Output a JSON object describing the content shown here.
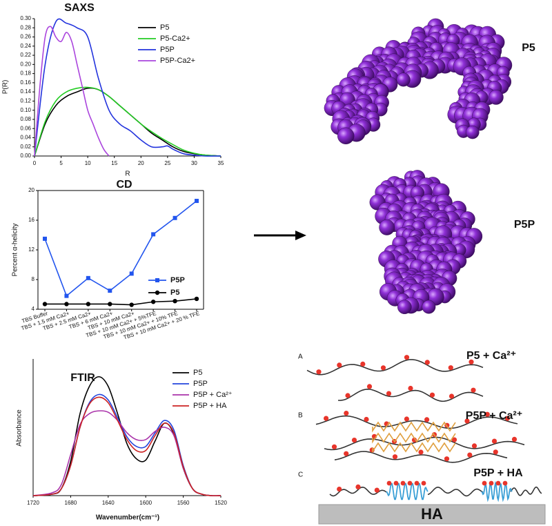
{
  "chart_data": [
    {
      "type": "line",
      "title": "SAXS",
      "x_label": "R",
      "y_label": "P(R)",
      "xlim": [
        0,
        35
      ],
      "xticks": [
        0,
        5,
        10,
        15,
        20,
        25,
        30,
        35
      ],
      "ylim": [
        0,
        0.3
      ],
      "yticks": [
        {
          "value": 0,
          "label": "0.00"
        },
        {
          "value": 0.02,
          "label": "0.02"
        },
        {
          "value": 0.04,
          "label": "0.04"
        },
        {
          "value": 0.06,
          "label": "0.06"
        },
        {
          "value": 0.08,
          "label": "0.08"
        },
        {
          "value": 0.1,
          "label": "0.10"
        },
        {
          "value": 0.12,
          "label": "0.12"
        },
        {
          "value": 0.14,
          "label": "0.14"
        },
        {
          "value": 0.16,
          "label": "0.16"
        },
        {
          "value": 0.18,
          "label": "0.18"
        },
        {
          "value": 0.2,
          "label": "0.20"
        },
        {
          "value": 0.22,
          "label": "0.22"
        },
        {
          "value": 0.24,
          "label": "0.24"
        },
        {
          "value": 0.26,
          "label": "0.26"
        },
        {
          "value": 0.28,
          "label": "0.28"
        },
        {
          "value": 0.3,
          "label": "0.30"
        }
      ],
      "legend": "upper right",
      "series": [
        {
          "name": "P5",
          "color": "#000000",
          "x": [
            0,
            2,
            4,
            6,
            8,
            10,
            12,
            14,
            16,
            18,
            20,
            22,
            24,
            26,
            28,
            30,
            32,
            35
          ],
          "values": [
            0,
            0.07,
            0.11,
            0.13,
            0.14,
            0.148,
            0.145,
            0.13,
            0.11,
            0.09,
            0.07,
            0.05,
            0.035,
            0.02,
            0.01,
            0.005,
            0.002,
            0
          ]
        },
        {
          "name": "P5-Ca2+",
          "color": "#22cc22",
          "x": [
            0,
            2,
            4,
            6,
            8,
            10,
            12,
            14,
            16,
            18,
            20,
            22,
            24,
            26,
            28,
            30,
            32,
            35
          ],
          "values": [
            0,
            0.075,
            0.12,
            0.14,
            0.148,
            0.15,
            0.145,
            0.13,
            0.11,
            0.09,
            0.07,
            0.053,
            0.038,
            0.025,
            0.013,
            0.006,
            0.002,
            0
          ]
        },
        {
          "name": "P5P",
          "color": "#2233dd",
          "x": [
            0,
            2,
            4,
            6,
            8,
            10,
            12,
            14,
            16,
            18,
            20,
            22,
            24,
            25,
            26,
            28,
            30,
            32,
            35
          ],
          "values": [
            0,
            0.2,
            0.293,
            0.29,
            0.28,
            0.26,
            0.17,
            0.1,
            0.07,
            0.055,
            0.035,
            0.02,
            0.02,
            0.022,
            0.015,
            0.005,
            0.002,
            0,
            0
          ]
        },
        {
          "name": "P5P-Ca2+",
          "color": "#aa44dd",
          "x": [
            0,
            1,
            2,
            3,
            4,
            5,
            6,
            7,
            8,
            9,
            10,
            11,
            12,
            13,
            14
          ],
          "values": [
            0,
            0.15,
            0.26,
            0.283,
            0.26,
            0.25,
            0.27,
            0.25,
            0.2,
            0.15,
            0.1,
            0.07,
            0.04,
            0.015,
            0
          ]
        }
      ]
    },
    {
      "type": "line",
      "title": "CD",
      "y_label": "Percent α-helicity",
      "categories": [
        "TBS Buffer",
        "TBS + 1.5 mM Ca2+",
        "TBS + 2.5 mM Ca2+",
        "TBS + 6 mM Ca2+",
        "TBS + 10 mM Ca2+",
        "TBS + 10 mM Ca2+ + 5%TFE",
        "TBS + 10 mM Ca2+ + 10% TFE",
        "TBS + 10 mM Ca2+ + 20 % TFE"
      ],
      "ylim": [
        4,
        20
      ],
      "yticks": [
        4,
        8,
        12,
        16,
        20
      ],
      "legend": "lower right",
      "series": [
        {
          "name": "P5P",
          "color": "#2255ee",
          "marker": "square",
          "values": [
            13.5,
            5.8,
            8.2,
            6.5,
            8.8,
            14.1,
            16.3,
            18.6
          ]
        },
        {
          "name": "P5",
          "color": "#000000",
          "marker": "circle",
          "values": [
            4.7,
            4.7,
            4.7,
            4.7,
            4.6,
            5.0,
            5.1,
            5.4
          ]
        }
      ]
    },
    {
      "type": "line",
      "title": "FTIR",
      "x_label": "Wavenumber(cm⁻¹)",
      "y_label": "Absorbance",
      "xlim": [
        1720,
        1520
      ],
      "xticks": [
        1720,
        1680,
        1640,
        1600,
        1560,
        1520
      ],
      "ylim": [
        0,
        1
      ],
      "legend": "upper right",
      "series": [
        {
          "name": "P5",
          "color": "#000000",
          "x": [
            1720,
            1700,
            1690,
            1680,
            1670,
            1660,
            1650,
            1640,
            1630,
            1620,
            1610,
            1600,
            1590,
            1580,
            1570,
            1560,
            1550,
            1540,
            1530,
            1520
          ],
          "values": [
            0,
            0.01,
            0.05,
            0.25,
            0.6,
            0.8,
            0.87,
            0.8,
            0.6,
            0.38,
            0.27,
            0.26,
            0.4,
            0.53,
            0.45,
            0.2,
            0.05,
            0.01,
            0,
            0
          ]
        },
        {
          "name": "P5P",
          "color": "#2244dd",
          "x": [
            1720,
            1700,
            1690,
            1680,
            1670,
            1660,
            1650,
            1640,
            1630,
            1620,
            1610,
            1600,
            1590,
            1580,
            1570,
            1560,
            1550,
            1540,
            1530,
            1520
          ],
          "values": [
            0,
            0.01,
            0.05,
            0.22,
            0.5,
            0.68,
            0.74,
            0.7,
            0.57,
            0.43,
            0.36,
            0.36,
            0.46,
            0.55,
            0.48,
            0.22,
            0.05,
            0.01,
            0,
            0
          ]
        },
        {
          "name": "P5P + Ca²⁺",
          "color": "#aa33aa",
          "x": [
            1720,
            1700,
            1690,
            1680,
            1670,
            1660,
            1650,
            1640,
            1630,
            1620,
            1610,
            1600,
            1590,
            1580,
            1570,
            1560,
            1550,
            1540,
            1530,
            1520
          ],
          "values": [
            0,
            0.02,
            0.08,
            0.3,
            0.52,
            0.6,
            0.62,
            0.61,
            0.55,
            0.46,
            0.41,
            0.41,
            0.47,
            0.5,
            0.44,
            0.2,
            0.05,
            0.01,
            0,
            0
          ]
        },
        {
          "name": "P5P + HA",
          "color": "#cc2222",
          "x": [
            1720,
            1700,
            1690,
            1680,
            1670,
            1660,
            1650,
            1640,
            1630,
            1620,
            1610,
            1600,
            1590,
            1580,
            1570,
            1560,
            1550,
            1540,
            1530,
            1520
          ],
          "values": [
            0,
            0.01,
            0.05,
            0.22,
            0.5,
            0.67,
            0.72,
            0.68,
            0.55,
            0.41,
            0.33,
            0.33,
            0.44,
            0.53,
            0.46,
            0.21,
            0.05,
            0.01,
            0,
            0
          ]
        }
      ]
    }
  ],
  "molecules": [
    {
      "label": "P5"
    },
    {
      "label": "P5P"
    }
  ],
  "schematic": {
    "panels": [
      {
        "letter": "A",
        "label": "P5 + Ca²⁺"
      },
      {
        "letter": "B",
        "label": "P5P + Ca²⁺"
      },
      {
        "letter": "C",
        "label": "P5P + HA"
      }
    ],
    "substrate": "HA"
  }
}
